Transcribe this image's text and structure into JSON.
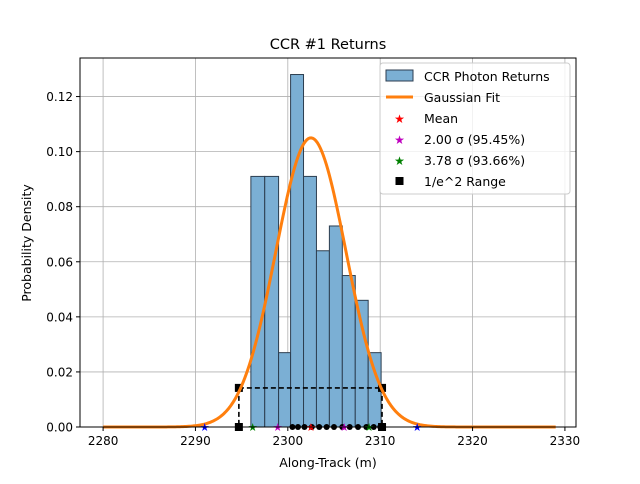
{
  "chart_data": {
    "type": "histogram",
    "title": "CCR #1 Returns",
    "xlabel": "Along-Track (m)",
    "ylabel": "Probability Density",
    "xlim": [
      2277.5,
      2331.2
    ],
    "ylim": [
      0.0,
      0.134
    ],
    "xticks": [
      2280,
      2290,
      2300,
      2310,
      2320,
      2330
    ],
    "yticks": [
      0.0,
      0.02,
      0.04,
      0.06,
      0.08,
      0.1,
      0.12
    ],
    "xtick_labels": [
      "2280",
      "2290",
      "2300",
      "2310",
      "2320",
      "2330"
    ],
    "ytick_labels": [
      "0.00",
      "0.02",
      "0.04",
      "0.06",
      "0.08",
      "0.10",
      "0.12"
    ],
    "grid": true,
    "legend_position": "top-right",
    "histogram": {
      "name": "CCR Photon Returns",
      "color": "#7bafd4",
      "edge_color": "#2c3e50",
      "bins": [
        {
          "left": 2296.0,
          "right": 2297.5,
          "density": 0.091
        },
        {
          "left": 2297.5,
          "right": 2299.0,
          "density": 0.091
        },
        {
          "left": 2299.0,
          "right": 2300.3,
          "density": 0.027
        },
        {
          "left": 2300.3,
          "right": 2301.7,
          "density": 0.128
        },
        {
          "left": 2301.7,
          "right": 2303.1,
          "density": 0.091
        },
        {
          "left": 2303.1,
          "right": 2304.5,
          "density": 0.064
        },
        {
          "left": 2304.5,
          "right": 2305.9,
          "density": 0.073
        },
        {
          "left": 2305.9,
          "right": 2307.3,
          "density": 0.055
        },
        {
          "left": 2307.3,
          "right": 2308.7,
          "density": 0.046
        },
        {
          "left": 2308.7,
          "right": 2310.1,
          "density": 0.027
        }
      ]
    },
    "gaussian_fit": {
      "name": "Gaussian Fit",
      "color": "#ff7f0e",
      "mean": 2302.5,
      "sigma": 3.8,
      "peak": 0.105,
      "x_range": [
        2280,
        2329
      ]
    },
    "markers": {
      "mean": {
        "name": "Mean",
        "color": "#ff0000",
        "symbol": "star",
        "x": [
          2302.5
        ],
        "y": [
          0.0
        ]
      },
      "sigma2": {
        "name": "2.00 σ (95.45%)",
        "color": "#bf00bf",
        "symbol": "star",
        "x": [
          2298.9,
          2306.1
        ],
        "y": [
          0.0,
          0.0
        ]
      },
      "sigma378": {
        "name": "3.78 σ (93.66%)",
        "color": "#008000",
        "symbol": "star",
        "x": [
          2296.2,
          2308.8
        ],
        "y": [
          0.0,
          0.0
        ]
      },
      "blue_points": {
        "color": "#0000ff",
        "symbol": "star",
        "x": [
          2291.0,
          2314.0
        ],
        "y": [
          0.0,
          0.0
        ]
      },
      "photon_points": {
        "color": "#000000",
        "symbol": "circle",
        "x": [
          2300.5,
          2301.1,
          2301.8,
          2302.6,
          2303.4,
          2304.2,
          2305.0,
          2305.9,
          2306.7,
          2307.6,
          2308.5,
          2309.3,
          2310.0
        ],
        "y": [
          0,
          0,
          0,
          0,
          0,
          0,
          0,
          0,
          0,
          0,
          0,
          0,
          0
        ]
      }
    },
    "e2_range": {
      "name": "1/e^2 Range",
      "color": "#000000",
      "symbol": "square",
      "x_left": 2294.7,
      "x_right": 2310.2,
      "level": 0.0142
    }
  }
}
